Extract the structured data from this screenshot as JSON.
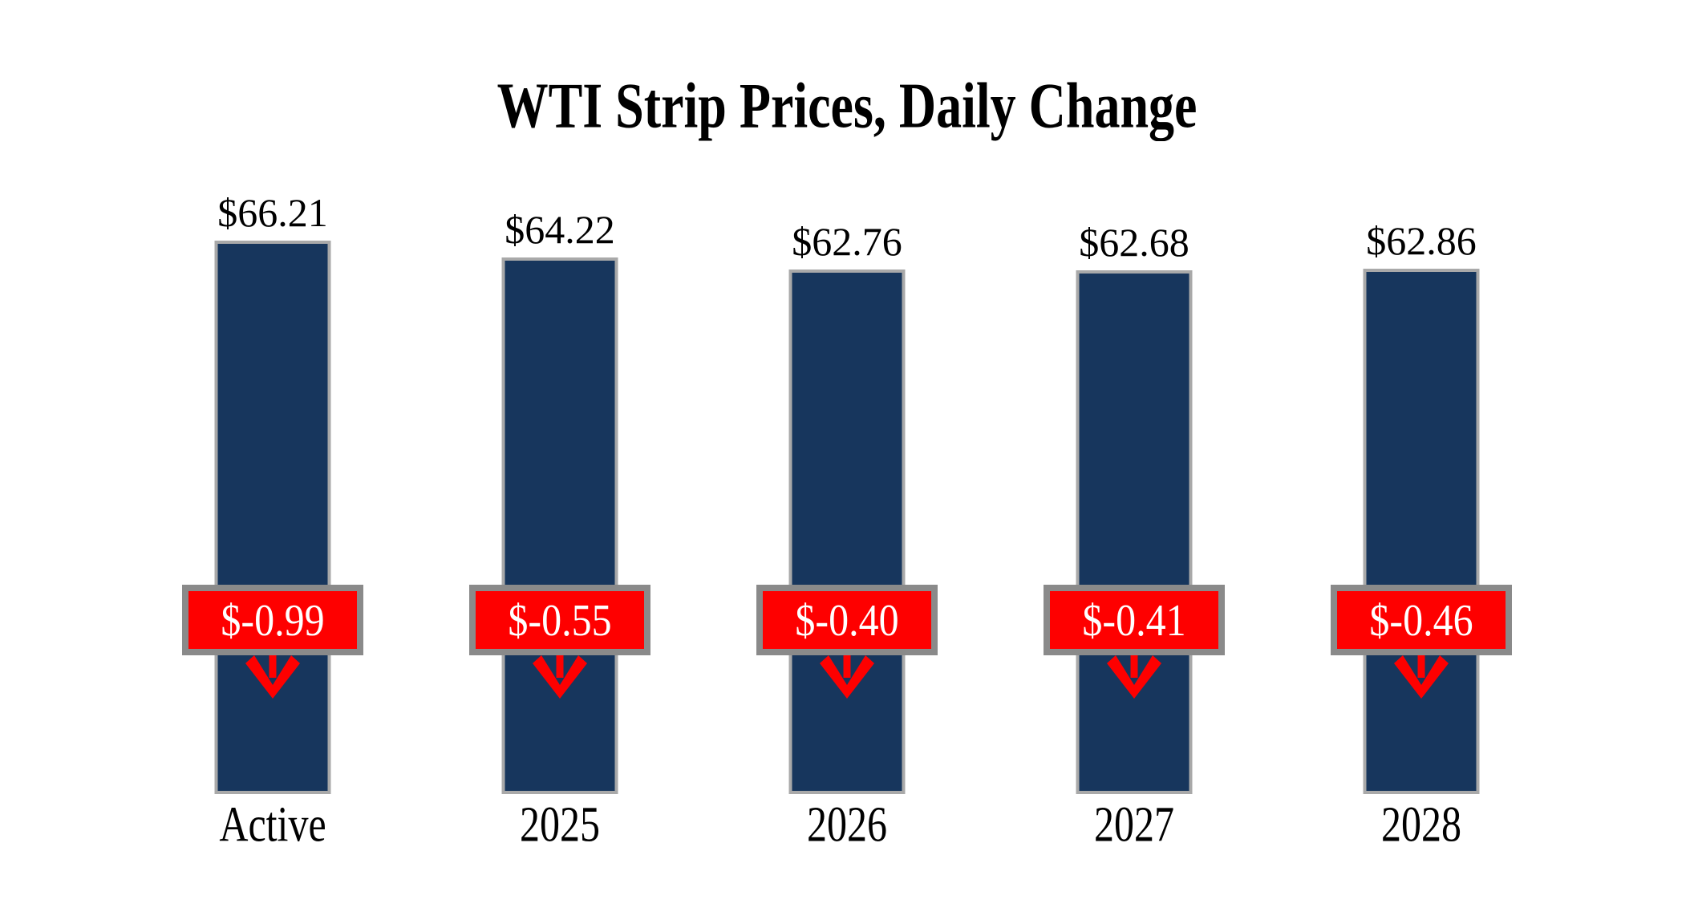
{
  "colors": {
    "background": "#FFFFFF",
    "bar_fill": "#17365D",
    "bar_border": "#A9A9A9",
    "badge_fill": "#FE0000",
    "badge_border": "#8A8A8A",
    "badge_text": "#FFFFFF",
    "arrow": "#FE0000",
    "text": "#000000"
  },
  "chart_data": {
    "type": "bar",
    "title": "WTI Strip Prices, Daily Change",
    "categories": [
      "Active",
      "2025",
      "2026",
      "2027",
      "2028"
    ],
    "series": [
      {
        "name": "price",
        "values": [
          66.21,
          64.22,
          62.76,
          62.68,
          62.86
        ],
        "labels": [
          "$66.21",
          "$64.22",
          "$62.76",
          "$62.68",
          "$62.86"
        ]
      },
      {
        "name": "daily_change",
        "values": [
          -0.99,
          -0.55,
          -0.4,
          -0.41,
          -0.46
        ],
        "labels": [
          "$-0.99",
          "$-0.55",
          "$-0.40",
          "$-0.41",
          "$-0.46"
        ]
      }
    ],
    "ylim": [
      0,
      66.21
    ],
    "grid": false,
    "legend": "none",
    "value_label_position": "above-bar",
    "change_label_position": "band-overlay-with-down-arrow"
  }
}
